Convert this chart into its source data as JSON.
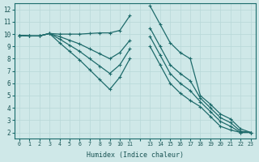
{
  "xlabel": "Humidex (Indice chaleur)",
  "bg_color": "#cfe8e8",
  "grid_color": "#b8d8d8",
  "line_color": "#1e6b6b",
  "xlim": [
    -0.5,
    23.5
  ],
  "ylim": [
    1.5,
    12.5
  ],
  "yticks": [
    2,
    3,
    4,
    5,
    6,
    7,
    8,
    9,
    10,
    11,
    12
  ],
  "xtick_labels": [
    "0",
    "1",
    "2",
    "3",
    "4",
    "5",
    "6",
    "7",
    "8",
    "9",
    "10",
    "11",
    "",
    "13",
    "14",
    "15",
    "16",
    "17",
    "18",
    "19",
    "20",
    "21",
    "22",
    "23"
  ],
  "series": [
    [
      9.9,
      9.85,
      9.85,
      10.05,
      10.0,
      10.0,
      10.0,
      10.05,
      10.1,
      10.1,
      10.3,
      11.5,
      null,
      12.3,
      10.8,
      9.3,
      8.5,
      8.0,
      5.0,
      4.3,
      3.5,
      3.1,
      2.3,
      2.0
    ],
    [
      9.9,
      9.85,
      9.85,
      10.05,
      9.8,
      9.5,
      9.2,
      8.8,
      8.4,
      8.0,
      8.5,
      9.5,
      null,
      10.5,
      9.0,
      7.5,
      6.8,
      6.2,
      4.8,
      4.0,
      3.2,
      2.8,
      2.1,
      2.0
    ],
    [
      9.9,
      9.85,
      9.85,
      10.05,
      9.6,
      9.1,
      8.6,
      8.0,
      7.4,
      6.8,
      7.5,
      8.8,
      null,
      9.8,
      8.3,
      6.8,
      6.0,
      5.4,
      4.5,
      3.7,
      2.9,
      2.5,
      2.0,
      2.0
    ],
    [
      9.9,
      9.85,
      9.85,
      10.05,
      9.3,
      8.6,
      7.9,
      7.1,
      6.3,
      5.5,
      6.5,
      8.0,
      null,
      9.0,
      7.5,
      6.0,
      5.2,
      4.6,
      4.1,
      3.3,
      2.5,
      2.2,
      2.0,
      2.0
    ]
  ]
}
